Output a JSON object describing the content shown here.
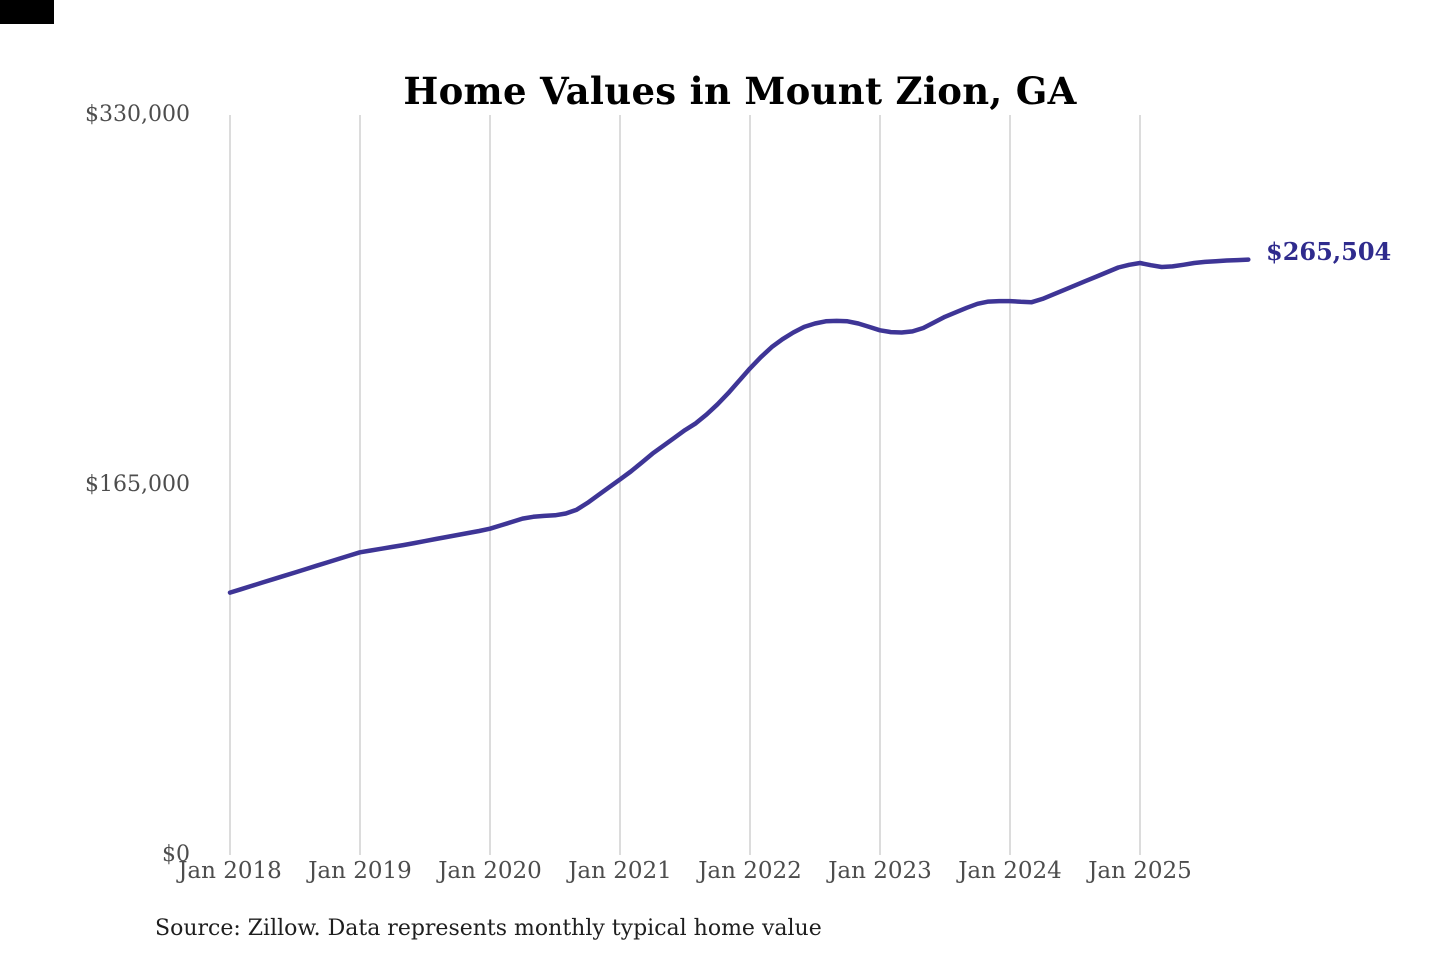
{
  "chart": {
    "title": "Home Values in Mount Zion, GA",
    "end_label": "$265,504",
    "source": "Source: Zillow. Data represents monthly typical home value",
    "colors": {
      "line": "#3e3596",
      "end_label": "#2f2b8d",
      "grid": "#c9c9c9",
      "tick_text": "#4d4d4d",
      "title": "#000000",
      "source": "#1e1e1e",
      "background": "#ffffff"
    }
  },
  "chart_data": {
    "type": "line",
    "title": "Home Values in Mount Zion, GA",
    "xlabel": "",
    "ylabel": "",
    "legend": "none",
    "grid": "vertical-yearly-only",
    "x_start": "2018-01",
    "x_end": "2025-11",
    "x_cadence": "monthly",
    "x_tick_labels": [
      "Jan 2018",
      "Jan 2019",
      "Jan 2020",
      "Jan 2021",
      "Jan 2022",
      "Jan 2023",
      "Jan 2024",
      "Jan 2025"
    ],
    "y_ticks": [
      0,
      165000,
      330000
    ],
    "y_tick_labels": [
      "$0",
      "$165,000",
      "$330,000"
    ],
    "ylim": [
      0,
      330000
    ],
    "end_annotation": "$265,504",
    "final_value": 265504,
    "series": [
      {
        "name": "Monthly typical home value",
        "monthly_values": [
          117000,
          118500,
          120000,
          121500,
          123000,
          124500,
          126000,
          127500,
          129000,
          130500,
          132000,
          133500,
          135000,
          135800,
          136600,
          137400,
          138200,
          139100,
          140000,
          140900,
          141800,
          142700,
          143600,
          144500,
          145500,
          147000,
          148500,
          150000,
          150800,
          151200,
          151500,
          152300,
          154000,
          157000,
          160500,
          164000,
          167500,
          171000,
          175000,
          179000,
          182500,
          186000,
          189500,
          192500,
          196500,
          201000,
          206000,
          211500,
          217000,
          222000,
          226500,
          230000,
          233000,
          235500,
          237000,
          238000,
          238200,
          238000,
          237000,
          235500,
          234000,
          233200,
          233000,
          233500,
          235000,
          237500,
          240000,
          242000,
          244000,
          245800,
          246800,
          247000,
          247000,
          246700,
          246500,
          248000,
          250000,
          252000,
          254000,
          256000,
          258000,
          260000,
          262000,
          263200,
          264000,
          263000,
          262200,
          262500,
          263200,
          264000,
          264500,
          264800,
          265100,
          265300,
          265504
        ]
      }
    ]
  }
}
